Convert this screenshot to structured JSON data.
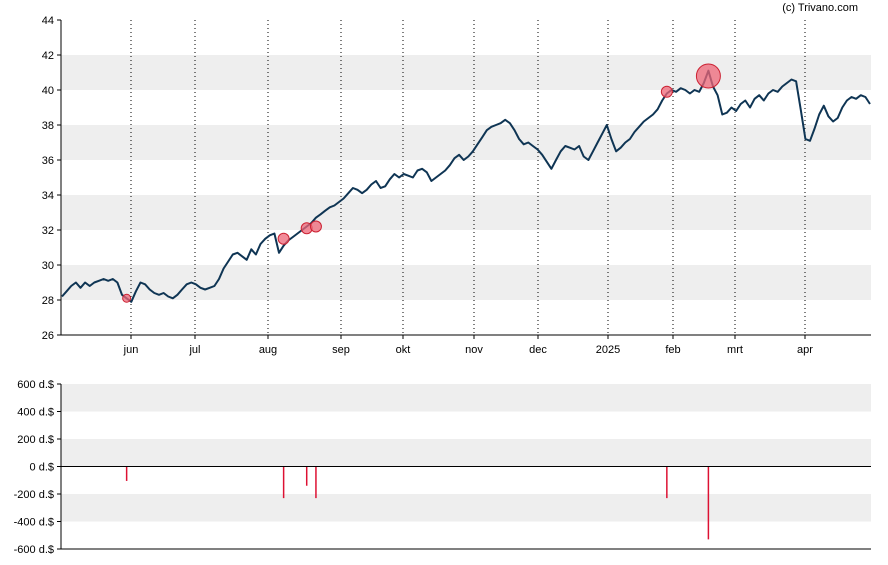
{
  "credit": "(c) Trivano.com",
  "colors": {
    "price_line": "#0f3554",
    "bubble_fill": "#ee6677",
    "bubble_stroke": "#cc2233",
    "volume_bar": "#dd1133",
    "band": "#eeeeee",
    "axis": "#000000"
  },
  "chart_data": [
    {
      "type": "line",
      "x_tick_labels": [
        "jun",
        "jul",
        "aug",
        "sep",
        "okt",
        "nov",
        "dec",
        "2025",
        "feb",
        "mrt",
        "apr"
      ],
      "y_tick_labels": [
        "26",
        "28",
        "30",
        "32",
        "34",
        "36",
        "38",
        "40",
        "42",
        "44"
      ],
      "ylim": [
        26,
        44
      ],
      "grid": "alternating horizontal bands, dotted vertical month lines",
      "series": [
        {
          "values": [
            28.2,
            28.5,
            28.8,
            29.0,
            28.7,
            29.0,
            28.8,
            29.0,
            29.1,
            29.2,
            29.1,
            29.2,
            29.0,
            28.3,
            28.1,
            27.9,
            28.5,
            29.0,
            28.9,
            28.6,
            28.4,
            28.3,
            28.4,
            28.2,
            28.1,
            28.3,
            28.6,
            28.9,
            29.0,
            28.9,
            28.7,
            28.6,
            28.7,
            28.8,
            29.2,
            29.8,
            30.2,
            30.6,
            30.7,
            30.5,
            30.3,
            30.9,
            30.6,
            31.2,
            31.5,
            31.7,
            31.8,
            30.7,
            31.1,
            31.4,
            31.6,
            31.8,
            32.0,
            32.2,
            32.4,
            32.7,
            32.9,
            33.1,
            33.3,
            33.4,
            33.6,
            33.8,
            34.1,
            34.4,
            34.3,
            34.1,
            34.3,
            34.6,
            34.8,
            34.4,
            34.5,
            34.9,
            35.2,
            35.0,
            35.2,
            35.1,
            35.0,
            35.4,
            35.5,
            35.3,
            34.8,
            35.0,
            35.2,
            35.4,
            35.7,
            36.1,
            36.3,
            36.0,
            36.2,
            36.5,
            36.9,
            37.3,
            37.7,
            37.9,
            38.0,
            38.1,
            38.3,
            38.1,
            37.7,
            37.2,
            36.9,
            37.0,
            36.8,
            36.6,
            36.3,
            35.9,
            35.5,
            36.0,
            36.5,
            36.8,
            36.7,
            36.6,
            36.8,
            36.2,
            36.0,
            36.5,
            37.0,
            37.5,
            38.0,
            37.2,
            36.5,
            36.7,
            37.0,
            37.2,
            37.6,
            37.9,
            38.2,
            38.4,
            38.6,
            38.9,
            39.4,
            39.8,
            40.0,
            39.9,
            40.1,
            40.0,
            39.8,
            40.0,
            39.9,
            40.4,
            41.1,
            40.2,
            39.7,
            38.6,
            38.7,
            39.0,
            38.8,
            39.2,
            39.4,
            39.0,
            39.5,
            39.7,
            39.4,
            39.8,
            40.0,
            39.9,
            40.2,
            40.4,
            40.6,
            40.5,
            38.9,
            37.2,
            37.1,
            37.8,
            38.6,
            39.1,
            38.5,
            38.2,
            38.4,
            39.0,
            39.4,
            39.6,
            39.5,
            39.7,
            39.6,
            39.2
          ]
        }
      ],
      "markers": [
        {
          "index": 14,
          "value": 28.1,
          "size": "small"
        },
        {
          "index": 48,
          "value": 31.5,
          "size": "medium"
        },
        {
          "index": 53,
          "value": 32.1,
          "size": "medium"
        },
        {
          "index": 55,
          "value": 32.2,
          "size": "medium"
        },
        {
          "index": 131,
          "value": 39.9,
          "size": "medium"
        },
        {
          "index": 140,
          "value": 40.8,
          "size": "large"
        }
      ]
    },
    {
      "type": "bar",
      "y_tick_labels": [
        "600 d.$",
        "400 d.$",
        "200 d.$",
        "0 d.$",
        "-200 d.$",
        "-400 d.$",
        "-600 d.$"
      ],
      "ylim": [
        -600,
        600
      ],
      "grid": "alternating horizontal bands, zero line",
      "bars": [
        {
          "index": 14,
          "value": -105
        },
        {
          "index": 48,
          "value": -230
        },
        {
          "index": 53,
          "value": -140
        },
        {
          "index": 55,
          "value": -230
        },
        {
          "index": 131,
          "value": -230
        },
        {
          "index": 140,
          "value": -530
        }
      ]
    }
  ]
}
